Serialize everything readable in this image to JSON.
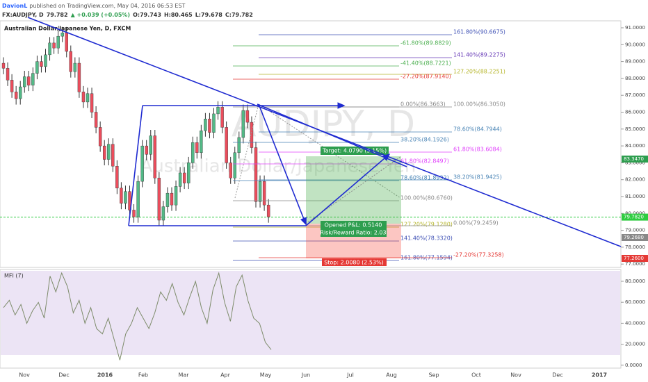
{
  "header": {
    "user": "DavionL",
    "published": "published on TradingView.com, May 04, 2016 06:53 EST",
    "symbol": "FX:AUDJPY, D",
    "last": "79.782",
    "change": "▲ +0.039 (+0.05%)",
    "open": "O:79.743",
    "high": "H:80.465",
    "low": "L:79.678",
    "close": "C:79.782"
  },
  "chart_title": "Australian Dollar/Japanese Yen, D, FXCM",
  "watermark": [
    "AUDJPY, D",
    "Australian Dollar/Japanese Yen"
  ],
  "price_axis": [
    "91.0000",
    "90.0000",
    "89.0000",
    "88.0000",
    "87.0000",
    "86.0000",
    "85.0000",
    "84.0000",
    "83.0000",
    "82.0000",
    "81.0000",
    "80.0000",
    "79.0000",
    "78.0000",
    "77.0000"
  ],
  "price_tags": [
    "83.3470",
    "79.7820",
    "79.2680",
    "77.2600"
  ],
  "fib_labels": [
    "161.80%(90.6675)",
    "-61.80%(89.8829)",
    "141.40%(89.2275)",
    "-41.40%(88.7221)",
    "127.20%(88.2251)",
    "-27.20%(87.9140)",
    "0.00%(86.3663)",
    "100.00%(86.3050)",
    "78.60%(84.7944)",
    "38.20%(84.1926)",
    "61.80%(83.6084)",
    "61.80%(82.8497)",
    "78.60%(81.8932)",
    "38.20%(81.9425)",
    "100.00%(80.6760)",
    "127.20%(79.1280)",
    "0.00%(79.2459)",
    "141.40%(78.3320)",
    "161.80%(77.1594)",
    "-27.20%(77.3258)"
  ],
  "position": {
    "target": "Target: 4.0790 (5.15%)",
    "pnl": "Opened P&L: 0.5140",
    "ratio": "Risk/Reward Ratio: 2.03",
    "stop": "Stop: 2.0080 (2.53%)"
  },
  "price_closes": [
    88.6,
    87.9,
    87.2,
    86.8,
    87.5,
    88.1,
    87.6,
    88.3,
    89.0,
    88.7,
    89.4,
    90.1,
    89.8,
    90.5,
    90.7,
    89.6,
    88.4,
    88.9,
    87.2,
    86.6,
    87.1,
    86.0,
    85.1,
    84.0,
    83.2,
    84.1,
    82.8,
    81.5,
    80.6,
    81.3,
    80.2,
    79.8,
    81.9,
    84.0,
    83.5,
    84.6,
    82.1,
    79.6,
    80.4,
    81.2,
    80.5,
    81.6,
    82.4,
    81.8,
    83.0,
    84.2,
    83.6,
    84.9,
    85.6,
    84.8,
    85.9,
    86.3,
    85.1,
    83.0,
    82.1,
    83.6,
    84.5,
    86.1,
    85.4,
    83.9,
    80.7,
    81.9,
    80.5,
    79.8
  ],
  "mfi": {
    "label": "MFI (7)",
    "values": [
      55,
      62,
      48,
      58,
      40,
      52,
      60,
      45,
      85,
      70,
      88,
      75,
      50,
      62,
      40,
      55,
      35,
      30,
      45,
      25,
      5,
      30,
      40,
      55,
      45,
      35,
      50,
      70,
      62,
      78,
      60,
      48,
      65,
      80,
      55,
      40,
      72,
      88,
      60,
      42,
      75,
      86,
      62,
      45,
      40,
      22,
      15
    ],
    "axis": [
      "80.0000",
      "60.0000",
      "40.0000",
      "20.0000",
      "0.0000"
    ]
  },
  "time_axis": [
    "Nov",
    "Dec",
    "2016",
    "Feb",
    "Mar",
    "Apr",
    "May",
    "Jun",
    "Jul",
    "Aug",
    "Sep",
    "Oct",
    "Nov",
    "Dec",
    "2017"
  ]
}
